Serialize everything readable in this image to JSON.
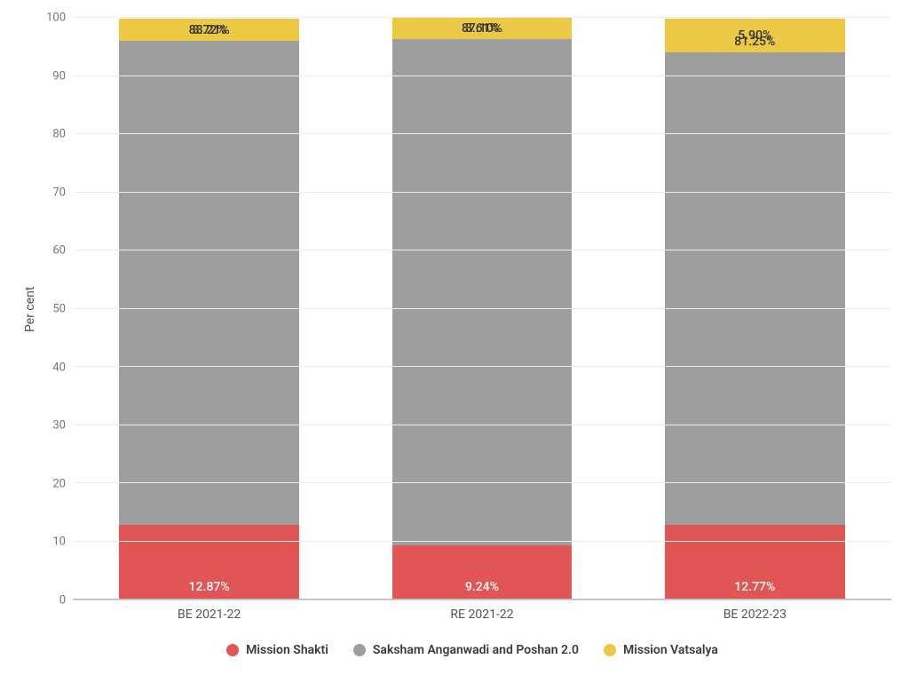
{
  "chart": {
    "type": "stacked-bar",
    "ylabel": "Per cent",
    "ylim": [
      0,
      100
    ],
    "ytick_step": 10,
    "bar_width_pct": 22,
    "background_color": "#ffffff",
    "grid_color": "#eeeeee",
    "axis_color": "#bdbdbd",
    "tick_color": "#757575",
    "label_fontsize": 14,
    "value_fontsize": 14,
    "categories": [
      "BE 2021-22",
      "RE 2021-22",
      "BE 2022-23"
    ],
    "series": [
      {
        "name": "Mission Shakti",
        "color": "#e15554"
      },
      {
        "name": "Saksham Anganwadi and Poshan 2.0",
        "color": "#9e9e9e"
      },
      {
        "name": "Mission Vatsalya",
        "color": "#ebc944"
      }
    ],
    "data": [
      {
        "category": "BE 2021-22",
        "segments": [
          {
            "series": "Mission Shakti",
            "value": 12.87,
            "label": "12.87%",
            "label_color": "#ffffff",
            "label_pos": "inside-bottom"
          },
          {
            "series": "Saksham Anganwadi and Poshan 2.0",
            "value": 83.21,
            "label": "83.21%",
            "label_color": "#333333",
            "label_pos": "above-bottom"
          },
          {
            "series": "Mission Vatsalya",
            "value": 3.72,
            "label": "3.72%",
            "label_color": "#333333",
            "label_pos": "center-top"
          }
        ]
      },
      {
        "category": "RE 2021-22",
        "segments": [
          {
            "series": "Mission Shakti",
            "value": 9.24,
            "label": "9.24%",
            "label_color": "#ffffff",
            "label_pos": "inside-bottom"
          },
          {
            "series": "Saksham Anganwadi and Poshan 2.0",
            "value": 87.1,
            "label": "87.10%",
            "label_color": "#333333",
            "label_pos": "above-bottom"
          },
          {
            "series": "Mission Vatsalya",
            "value": 3.61,
            "label": "3.61%",
            "label_color": "#333333",
            "label_pos": "center-top"
          }
        ]
      },
      {
        "category": "BE 2022-23",
        "segments": [
          {
            "series": "Mission Shakti",
            "value": 12.77,
            "label": "12.77%",
            "label_color": "#ffffff",
            "label_pos": "inside-bottom"
          },
          {
            "series": "Saksham Anganwadi and Poshan 2.0",
            "value": 81.25,
            "label": "81.25%",
            "label_color": "#333333",
            "label_pos": "above-bottom"
          },
          {
            "series": "Mission Vatsalya",
            "value": 5.9,
            "label": "5.90%",
            "label_color": "#333333",
            "label_pos": "center-top"
          }
        ]
      }
    ]
  }
}
